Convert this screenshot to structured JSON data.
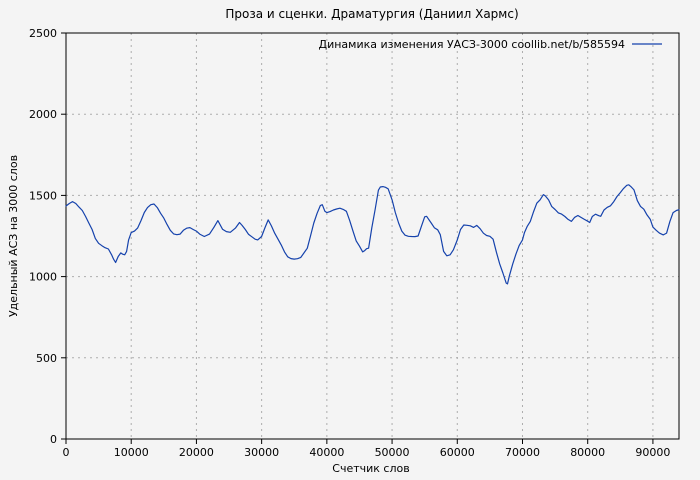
{
  "colors": {
    "line": "#1542ac",
    "grid": "#adadad",
    "border": "#000000",
    "background": "#f4f4f4",
    "text": "#000000"
  },
  "chart_data": {
    "type": "line",
    "title": "Проза и сценки. Драматургия (Даниил Хармс)",
    "xlabel": "Счетчик слов",
    "ylabel": "Удельный АСЗ на 3000 слов",
    "legend_position": "top-right-inside",
    "grid": true,
    "grid_style": "dashed",
    "xlim": [
      0,
      94000
    ],
    "ylim": [
      0,
      2500
    ],
    "xticks": [
      0,
      10000,
      20000,
      30000,
      40000,
      50000,
      60000,
      70000,
      80000,
      90000
    ],
    "yticks": [
      0,
      500,
      1000,
      1500,
      2000,
      2500
    ],
    "series": [
      {
        "name": "Динамика изменения УАСЗ-3000 coollib.net/b/585594",
        "color": "#1542ac",
        "points": [
          [
            0,
            1435
          ],
          [
            500,
            1450
          ],
          [
            1000,
            1462
          ],
          [
            1500,
            1450
          ],
          [
            2000,
            1428
          ],
          [
            2500,
            1407
          ],
          [
            3000,
            1370
          ],
          [
            3500,
            1330
          ],
          [
            4000,
            1290
          ],
          [
            4500,
            1235
          ],
          [
            5000,
            1205
          ],
          [
            5500,
            1190
          ],
          [
            6000,
            1178
          ],
          [
            6500,
            1170
          ],
          [
            7000,
            1134
          ],
          [
            7300,
            1107
          ],
          [
            7600,
            1087
          ],
          [
            8000,
            1124
          ],
          [
            8400,
            1146
          ],
          [
            8700,
            1138
          ],
          [
            9000,
            1134
          ],
          [
            9300,
            1155
          ],
          [
            9600,
            1226
          ],
          [
            10000,
            1271
          ],
          [
            10500,
            1280
          ],
          [
            11000,
            1300
          ],
          [
            11500,
            1345
          ],
          [
            12000,
            1395
          ],
          [
            12500,
            1425
          ],
          [
            13000,
            1443
          ],
          [
            13500,
            1447
          ],
          [
            14000,
            1425
          ],
          [
            14500,
            1390
          ],
          [
            15000,
            1360
          ],
          [
            15500,
            1320
          ],
          [
            16000,
            1285
          ],
          [
            16500,
            1263
          ],
          [
            17000,
            1258
          ],
          [
            17500,
            1262
          ],
          [
            18000,
            1285
          ],
          [
            18500,
            1298
          ],
          [
            19000,
            1302
          ],
          [
            19500,
            1290
          ],
          [
            20000,
            1280
          ],
          [
            20500,
            1262
          ],
          [
            21200,
            1247
          ],
          [
            22000,
            1262
          ],
          [
            22700,
            1304
          ],
          [
            23300,
            1345
          ],
          [
            24000,
            1292
          ],
          [
            24600,
            1277
          ],
          [
            25200,
            1273
          ],
          [
            26000,
            1300
          ],
          [
            26600,
            1333
          ],
          [
            27000,
            1315
          ],
          [
            27500,
            1290
          ],
          [
            28000,
            1260
          ],
          [
            28500,
            1245
          ],
          [
            29000,
            1230
          ],
          [
            29400,
            1226
          ],
          [
            30000,
            1247
          ],
          [
            30500,
            1300
          ],
          [
            31000,
            1349
          ],
          [
            31500,
            1312
          ],
          [
            32000,
            1267
          ],
          [
            32500,
            1232
          ],
          [
            33000,
            1195
          ],
          [
            33500,
            1152
          ],
          [
            34000,
            1122
          ],
          [
            34500,
            1111
          ],
          [
            35000,
            1108
          ],
          [
            35500,
            1110
          ],
          [
            36000,
            1118
          ],
          [
            36500,
            1146
          ],
          [
            37000,
            1175
          ],
          [
            37500,
            1250
          ],
          [
            38000,
            1330
          ],
          [
            38500,
            1390
          ],
          [
            39000,
            1437
          ],
          [
            39300,
            1443
          ],
          [
            39700,
            1402
          ],
          [
            40000,
            1394
          ],
          [
            40500,
            1400
          ],
          [
            41000,
            1410
          ],
          [
            41500,
            1416
          ],
          [
            42000,
            1421
          ],
          [
            42500,
            1414
          ],
          [
            43000,
            1402
          ],
          [
            43500,
            1345
          ],
          [
            44000,
            1282
          ],
          [
            44500,
            1220
          ],
          [
            45000,
            1187
          ],
          [
            45500,
            1152
          ],
          [
            45800,
            1160
          ],
          [
            46100,
            1172
          ],
          [
            46400,
            1175
          ],
          [
            46900,
            1300
          ],
          [
            47400,
            1412
          ],
          [
            47900,
            1532
          ],
          [
            48200,
            1552
          ],
          [
            48600,
            1554
          ],
          [
            49000,
            1550
          ],
          [
            49400,
            1540
          ],
          [
            50000,
            1472
          ],
          [
            50500,
            1395
          ],
          [
            51000,
            1330
          ],
          [
            51500,
            1280
          ],
          [
            52000,
            1255
          ],
          [
            52500,
            1248
          ],
          [
            53000,
            1247
          ],
          [
            53500,
            1246
          ],
          [
            54000,
            1250
          ],
          [
            54500,
            1310
          ],
          [
            55000,
            1368
          ],
          [
            55300,
            1371
          ],
          [
            56000,
            1330
          ],
          [
            56500,
            1300
          ],
          [
            57000,
            1288
          ],
          [
            57400,
            1258
          ],
          [
            57900,
            1155
          ],
          [
            58400,
            1128
          ],
          [
            58900,
            1134
          ],
          [
            59400,
            1165
          ],
          [
            60000,
            1226
          ],
          [
            60500,
            1290
          ],
          [
            61000,
            1318
          ],
          [
            61500,
            1316
          ],
          [
            62000,
            1313
          ],
          [
            62500,
            1303
          ],
          [
            63000,
            1315
          ],
          [
            63500,
            1295
          ],
          [
            64000,
            1267
          ],
          [
            64500,
            1253
          ],
          [
            65000,
            1248
          ],
          [
            65500,
            1230
          ],
          [
            66000,
            1150
          ],
          [
            66500,
            1078
          ],
          [
            67000,
            1022
          ],
          [
            67500,
            960
          ],
          [
            67700,
            955
          ],
          [
            68000,
            1005
          ],
          [
            68500,
            1077
          ],
          [
            69000,
            1140
          ],
          [
            69500,
            1192
          ],
          [
            70000,
            1226
          ],
          [
            70300,
            1270
          ],
          [
            70700,
            1308
          ],
          [
            71200,
            1340
          ],
          [
            71700,
            1400
          ],
          [
            72200,
            1452
          ],
          [
            72700,
            1473
          ],
          [
            73200,
            1505
          ],
          [
            73500,
            1497
          ],
          [
            74000,
            1472
          ],
          [
            74500,
            1431
          ],
          [
            75000,
            1413
          ],
          [
            75500,
            1392
          ],
          [
            76000,
            1385
          ],
          [
            76500,
            1370
          ],
          [
            77000,
            1352
          ],
          [
            77500,
            1340
          ],
          [
            78000,
            1365
          ],
          [
            78500,
            1376
          ],
          [
            79000,
            1364
          ],
          [
            79500,
            1352
          ],
          [
            80000,
            1341
          ],
          [
            80300,
            1333
          ],
          [
            80700,
            1370
          ],
          [
            81200,
            1384
          ],
          [
            81700,
            1375
          ],
          [
            82000,
            1371
          ],
          [
            82500,
            1410
          ],
          [
            83000,
            1427
          ],
          [
            83500,
            1436
          ],
          [
            84000,
            1462
          ],
          [
            84500,
            1493
          ],
          [
            85000,
            1517
          ],
          [
            85500,
            1543
          ],
          [
            86000,
            1562
          ],
          [
            86300,
            1565
          ],
          [
            86700,
            1551
          ],
          [
            87100,
            1534
          ],
          [
            87600,
            1468
          ],
          [
            88100,
            1432
          ],
          [
            88600,
            1415
          ],
          [
            89100,
            1380
          ],
          [
            89600,
            1352
          ],
          [
            90000,
            1305
          ],
          [
            90500,
            1285
          ],
          [
            91000,
            1268
          ],
          [
            91600,
            1257
          ],
          [
            92100,
            1268
          ],
          [
            92600,
            1340
          ],
          [
            93100,
            1394
          ],
          [
            93600,
            1407
          ],
          [
            94000,
            1412
          ]
        ]
      }
    ]
  }
}
